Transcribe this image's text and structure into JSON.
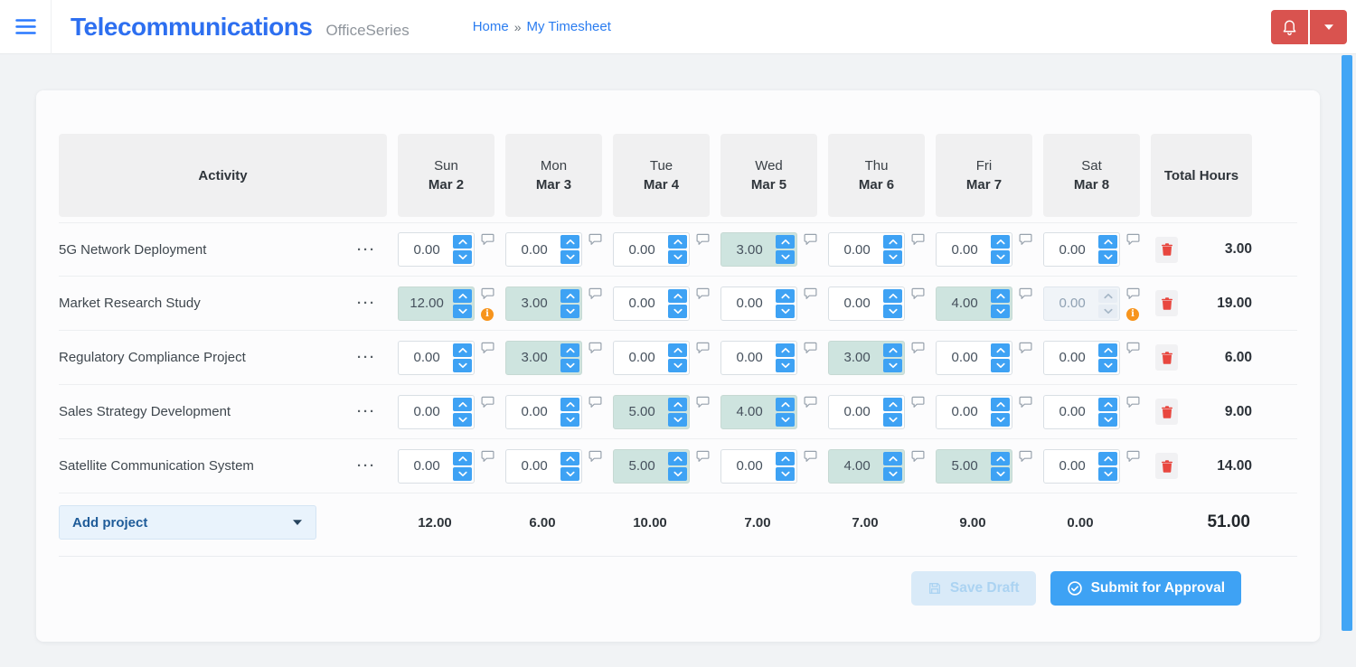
{
  "topbar": {
    "title": "Telecommunications",
    "subtitle": "OfficeSeries",
    "breadcrumb": {
      "home": "Home",
      "separator": "»",
      "current": "My Timesheet"
    }
  },
  "timesheet": {
    "header": {
      "activity": "Activity",
      "total_hours": "Total Hours"
    },
    "days": [
      {
        "day": "Sun",
        "date": "Mar 2"
      },
      {
        "day": "Mon",
        "date": "Mar 3"
      },
      {
        "day": "Tue",
        "date": "Mar 4"
      },
      {
        "day": "Wed",
        "date": "Mar 5"
      },
      {
        "day": "Thu",
        "date": "Mar 6"
      },
      {
        "day": "Fri",
        "date": "Mar 7"
      },
      {
        "day": "Sat",
        "date": "Mar 8"
      }
    ],
    "rows": [
      {
        "activity": "5G Network Deployment",
        "cells": [
          {
            "value": "0.00"
          },
          {
            "value": "0.00"
          },
          {
            "value": "0.00"
          },
          {
            "value": "3.00",
            "filled": true
          },
          {
            "value": "0.00"
          },
          {
            "value": "0.00"
          },
          {
            "value": "0.00"
          }
        ],
        "total": "3.00"
      },
      {
        "activity": "Market Research Study",
        "cells": [
          {
            "value": "12.00",
            "filled": true,
            "warning": true
          },
          {
            "value": "3.00",
            "filled": true
          },
          {
            "value": "0.00"
          },
          {
            "value": "0.00"
          },
          {
            "value": "0.00"
          },
          {
            "value": "4.00",
            "filled": true
          },
          {
            "value": "0.00",
            "disabled": true,
            "warning": true
          }
        ],
        "total": "19.00"
      },
      {
        "activity": "Regulatory Compliance Project",
        "cells": [
          {
            "value": "0.00"
          },
          {
            "value": "3.00",
            "filled": true
          },
          {
            "value": "0.00"
          },
          {
            "value": "0.00"
          },
          {
            "value": "3.00",
            "filled": true
          },
          {
            "value": "0.00"
          },
          {
            "value": "0.00"
          }
        ],
        "total": "6.00"
      },
      {
        "activity": "Sales Strategy Development",
        "cells": [
          {
            "value": "0.00"
          },
          {
            "value": "0.00"
          },
          {
            "value": "5.00",
            "filled": true
          },
          {
            "value": "4.00",
            "filled": true
          },
          {
            "value": "0.00"
          },
          {
            "value": "0.00"
          },
          {
            "value": "0.00"
          }
        ],
        "total": "9.00"
      },
      {
        "activity": "Satellite Communication System",
        "cells": [
          {
            "value": "0.00"
          },
          {
            "value": "0.00"
          },
          {
            "value": "5.00",
            "filled": true
          },
          {
            "value": "0.00"
          },
          {
            "value": "4.00",
            "filled": true
          },
          {
            "value": "5.00",
            "filled": true
          },
          {
            "value": "0.00"
          }
        ],
        "total": "14.00"
      }
    ],
    "footer_totals": {
      "add_project_label": "Add project",
      "day_totals": [
        "12.00",
        "6.00",
        "10.00",
        "7.00",
        "7.00",
        "9.00",
        "0.00"
      ],
      "grand_total": "51.00"
    }
  },
  "actions": {
    "save_draft": "Save Draft",
    "submit": "Submit for Approval"
  },
  "icons": {
    "row_menu_glyph": "···",
    "warning_glyph": "i"
  },
  "colors": {
    "accent_blue": "#3ea2f4",
    "brand_blue": "#2d6ff0",
    "topbar_red": "#d9534f",
    "filled_cell": "#cee4df",
    "warning_orange": "#f7941d",
    "trash_red": "#e8473f",
    "scrollbar_blue": "#42a5f5"
  }
}
